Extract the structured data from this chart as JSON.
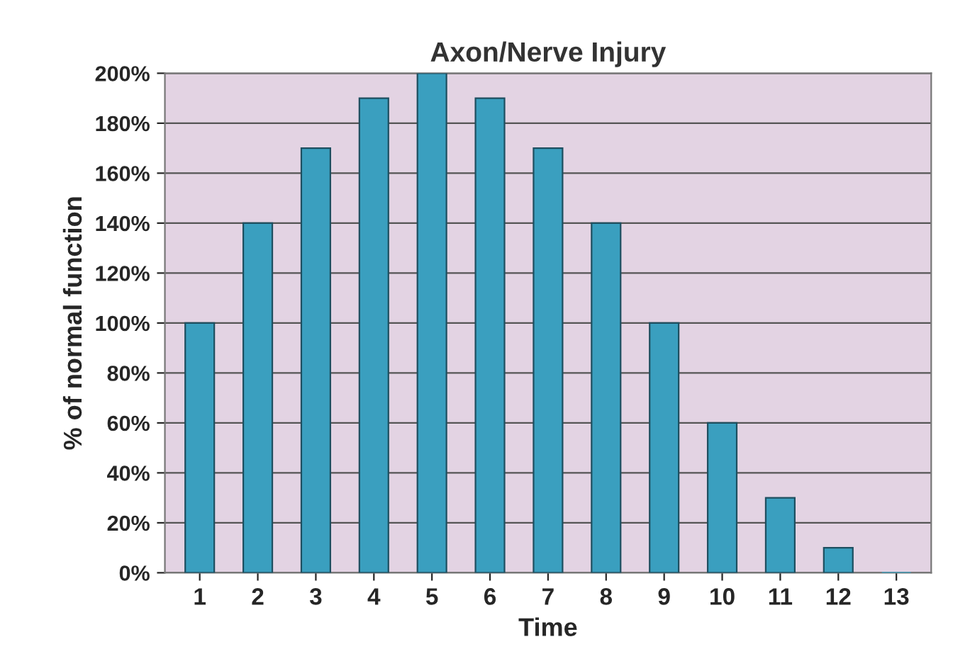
{
  "chart_data": {
    "type": "bar",
    "title": "Axon/Nerve Injury",
    "xlabel": "Time",
    "ylabel": "% of normal function",
    "categories": [
      "1",
      "2",
      "3",
      "4",
      "5",
      "6",
      "7",
      "8",
      "9",
      "10",
      "11",
      "12",
      "13"
    ],
    "values": [
      100,
      140,
      170,
      190,
      200,
      190,
      170,
      140,
      100,
      60,
      30,
      10,
      0
    ],
    "color": "#3a9fbf",
    "ylim": [
      0,
      200
    ],
    "yticks": [
      {
        "value": 0,
        "label": "0%"
      },
      {
        "value": 20,
        "label": "20%"
      },
      {
        "value": 40,
        "label": "40%"
      },
      {
        "value": 60,
        "label": "60%"
      },
      {
        "value": 80,
        "label": "80%"
      },
      {
        "value": 100,
        "label": "100%"
      },
      {
        "value": 120,
        "label": "120%"
      },
      {
        "value": 140,
        "label": "140%"
      },
      {
        "value": 160,
        "label": "160%"
      },
      {
        "value": 180,
        "label": "180%"
      },
      {
        "value": 200,
        "label": "200%"
      }
    ],
    "grid": "y"
  }
}
